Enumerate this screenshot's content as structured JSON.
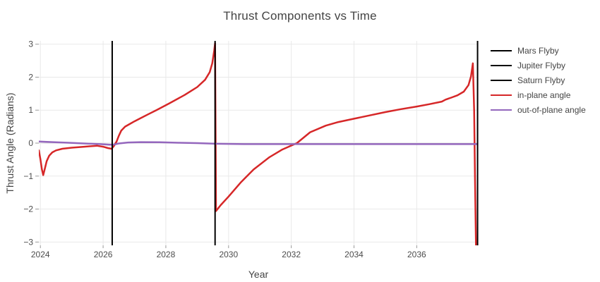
{
  "chart_data": {
    "type": "line",
    "title": "Thrust Components vs Time",
    "xlabel": "Year",
    "ylabel": "Thrust Angle (Radians)",
    "x_range": [
      2023.95,
      2037.95
    ],
    "y_range": [
      -3.1,
      3.1
    ],
    "x_ticks": [
      2024,
      2026,
      2028,
      2030,
      2032,
      2034,
      2036
    ],
    "y_ticks": [
      -3,
      -2,
      -1,
      0,
      1,
      2,
      3
    ],
    "grid": true,
    "legend_position": "top-right-outside",
    "colors": {
      "grid": "#e9e9e9",
      "zeroline": "#d8d8d8",
      "tick": "#9a9a9a",
      "text": "#444444",
      "in_plane": "#d62728",
      "out_of_plane": "#9467bd",
      "flyby": "#000000",
      "background": "#ffffff"
    },
    "flyby_events": [
      {
        "name": "Mars Flyby",
        "year": 2026.29
      },
      {
        "name": "Jupiter Flyby",
        "year": 2029.57
      },
      {
        "name": "Saturn Flyby",
        "year": 2037.94
      }
    ],
    "legend": [
      {
        "label": "Mars Flyby",
        "color": "#000000"
      },
      {
        "label": "Jupiter Flyby",
        "color": "#000000"
      },
      {
        "label": "Saturn Flyby",
        "color": "#000000"
      },
      {
        "label": "in-plane angle",
        "color": "#d62728"
      },
      {
        "label": "out-of-plane angle",
        "color": "#9467bd"
      }
    ],
    "series": [
      {
        "name": "in-plane angle",
        "color": "#d62728",
        "width": 2.5,
        "points": [
          [
            2023.95,
            -0.22
          ],
          [
            2024.0,
            -0.48
          ],
          [
            2024.05,
            -0.8
          ],
          [
            2024.09,
            -0.97
          ],
          [
            2024.13,
            -0.82
          ],
          [
            2024.2,
            -0.55
          ],
          [
            2024.28,
            -0.38
          ],
          [
            2024.38,
            -0.28
          ],
          [
            2024.5,
            -0.22
          ],
          [
            2024.7,
            -0.17
          ],
          [
            2025.0,
            -0.14
          ],
          [
            2025.4,
            -0.11
          ],
          [
            2025.8,
            -0.08
          ],
          [
            2026.0,
            -0.11
          ],
          [
            2026.15,
            -0.15
          ],
          [
            2026.27,
            -0.17
          ],
          [
            2026.35,
            -0.08
          ],
          [
            2026.43,
            0.05
          ],
          [
            2026.5,
            0.22
          ],
          [
            2026.58,
            0.38
          ],
          [
            2026.7,
            0.5
          ],
          [
            2026.85,
            0.58
          ],
          [
            2027.0,
            0.66
          ],
          [
            2027.2,
            0.76
          ],
          [
            2027.45,
            0.88
          ],
          [
            2027.7,
            1.0
          ],
          [
            2028.1,
            1.2
          ],
          [
            2028.6,
            1.46
          ],
          [
            2029.0,
            1.7
          ],
          [
            2029.25,
            1.92
          ],
          [
            2029.4,
            2.15
          ],
          [
            2029.48,
            2.42
          ],
          [
            2029.54,
            2.8
          ],
          [
            2029.57,
            3.03
          ],
          [
            2029.6,
            -2.06
          ],
          [
            2029.75,
            -1.88
          ],
          [
            2030.0,
            -1.62
          ],
          [
            2030.4,
            -1.18
          ],
          [
            2030.8,
            -0.8
          ],
          [
            2031.3,
            -0.43
          ],
          [
            2031.7,
            -0.2
          ],
          [
            2032.18,
            0.0
          ],
          [
            2032.6,
            0.33
          ],
          [
            2033.1,
            0.53
          ],
          [
            2033.5,
            0.64
          ],
          [
            2034.0,
            0.74
          ],
          [
            2034.5,
            0.84
          ],
          [
            2035.0,
            0.94
          ],
          [
            2035.5,
            1.03
          ],
          [
            2036.0,
            1.11
          ],
          [
            2036.4,
            1.18
          ],
          [
            2036.8,
            1.26
          ],
          [
            2036.92,
            1.32
          ],
          [
            2037.1,
            1.38
          ],
          [
            2037.3,
            1.45
          ],
          [
            2037.5,
            1.56
          ],
          [
            2037.65,
            1.76
          ],
          [
            2037.73,
            2.02
          ],
          [
            2037.79,
            2.42
          ],
          [
            2037.83,
            1.0
          ],
          [
            2037.86,
            -1.2
          ],
          [
            2037.89,
            -3.1
          ]
        ]
      },
      {
        "name": "out-of-plane angle",
        "color": "#9467bd",
        "width": 2.5,
        "points": [
          [
            2023.95,
            0.05
          ],
          [
            2024.4,
            0.03
          ],
          [
            2024.9,
            0.01
          ],
          [
            2025.4,
            -0.01
          ],
          [
            2025.9,
            -0.03
          ],
          [
            2026.2,
            -0.05
          ],
          [
            2026.32,
            -0.05
          ],
          [
            2026.5,
            -0.01
          ],
          [
            2026.8,
            0.02
          ],
          [
            2027.2,
            0.03
          ],
          [
            2027.8,
            0.025
          ],
          [
            2028.4,
            0.01
          ],
          [
            2029.0,
            0.0
          ],
          [
            2029.6,
            -0.02
          ],
          [
            2030.5,
            -0.03
          ],
          [
            2032.0,
            -0.03
          ],
          [
            2034.0,
            -0.03
          ],
          [
            2036.0,
            -0.03
          ],
          [
            2037.93,
            -0.03
          ]
        ]
      }
    ]
  }
}
